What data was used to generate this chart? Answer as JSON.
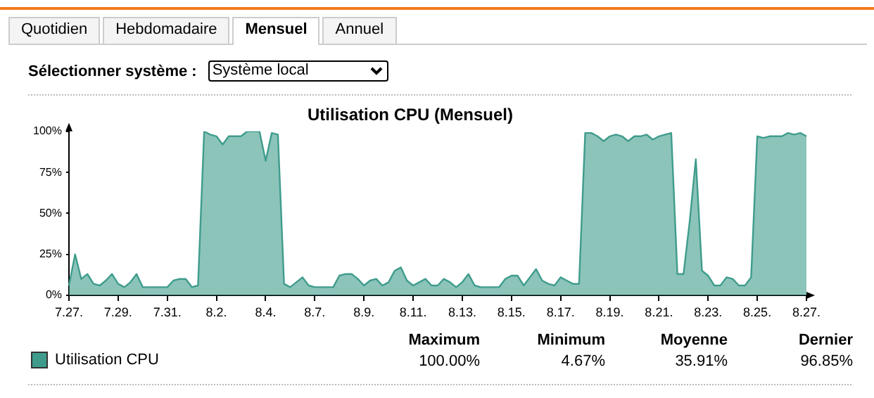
{
  "chart_data": {
    "type": "area",
    "title": "Utilisation CPU (Mensuel)",
    "annotations": [
      "Quotidien",
      "Hebdomadaire",
      "Mensuel",
      "Annuel",
      "Sélectionner système :",
      "Système local",
      "Maximum",
      "Minimum",
      "Moyenne",
      "Dernier",
      "100.00%",
      "4.67%",
      "35.91%",
      "96.85%"
    ],
    "categories": [
      "7.27.",
      null,
      null,
      null,
      null,
      null,
      null,
      null,
      "7.29.",
      null,
      null,
      null,
      null,
      null,
      null,
      null,
      "7.31.",
      null,
      null,
      null,
      null,
      null,
      null,
      null,
      "8.2.",
      null,
      null,
      null,
      null,
      null,
      null,
      null,
      "8.4.",
      null,
      null,
      null,
      null,
      null,
      null,
      null,
      "8.7.",
      null,
      null,
      null,
      null,
      null,
      null,
      null,
      "8.9.",
      null,
      null,
      null,
      null,
      null,
      null,
      null,
      "8.11.",
      null,
      null,
      null,
      null,
      null,
      null,
      null,
      "8.13.",
      null,
      null,
      null,
      null,
      null,
      null,
      null,
      "8.15.",
      null,
      null,
      null,
      null,
      null,
      null,
      null,
      "8.17.",
      null,
      null,
      null,
      null,
      null,
      null,
      null,
      "8.19.",
      null,
      null,
      null,
      null,
      null,
      null,
      null,
      "8.21.",
      null,
      null,
      null,
      null,
      null,
      null,
      null,
      "8.23.",
      null,
      null,
      null,
      null,
      null,
      null,
      null,
      "8.25.",
      null,
      null,
      null,
      null,
      null,
      null,
      null,
      "8.27."
    ],
    "series": [
      {
        "name": "Utilisation CPU",
        "color": "#3f9c8c",
        "values": [
          6,
          25,
          10,
          13,
          7,
          6,
          9,
          13,
          7,
          5,
          8,
          13,
          5,
          5,
          5,
          5,
          5,
          9,
          10,
          10,
          5,
          6,
          100,
          98,
          97,
          92,
          97,
          97,
          97,
          100,
          100,
          100,
          82,
          99,
          98,
          7,
          5,
          8,
          11,
          6,
          5,
          5,
          5,
          5,
          12,
          13,
          13,
          10,
          6,
          9,
          10,
          6,
          8,
          15,
          17,
          9,
          6,
          8,
          10,
          6,
          6,
          10,
          8,
          5,
          8,
          13,
          6,
          5,
          5,
          5,
          5,
          10,
          12,
          12,
          6,
          11,
          16,
          9,
          7,
          6,
          11,
          9,
          7,
          7,
          99,
          99,
          97,
          94,
          97,
          98,
          97,
          94,
          97,
          97,
          98,
          95,
          97,
          98,
          99,
          13,
          13,
          45,
          83,
          15,
          12,
          6,
          6,
          11,
          10,
          6,
          6,
          11,
          97,
          96,
          97,
          97,
          97,
          99,
          98,
          99,
          97
        ]
      }
    ],
    "ylim": [
      0,
      100
    ],
    "yticks": [
      {
        "value": 0,
        "label": "0%"
      },
      {
        "value": 25,
        "label": "25%"
      },
      {
        "value": 50,
        "label": "50%"
      },
      {
        "value": 75,
        "label": "75%"
      },
      {
        "value": 100,
        "label": "100%"
      }
    ],
    "grid": false,
    "legend": "bottom left",
    "marker": "none",
    "line_style": "solid"
  }
}
